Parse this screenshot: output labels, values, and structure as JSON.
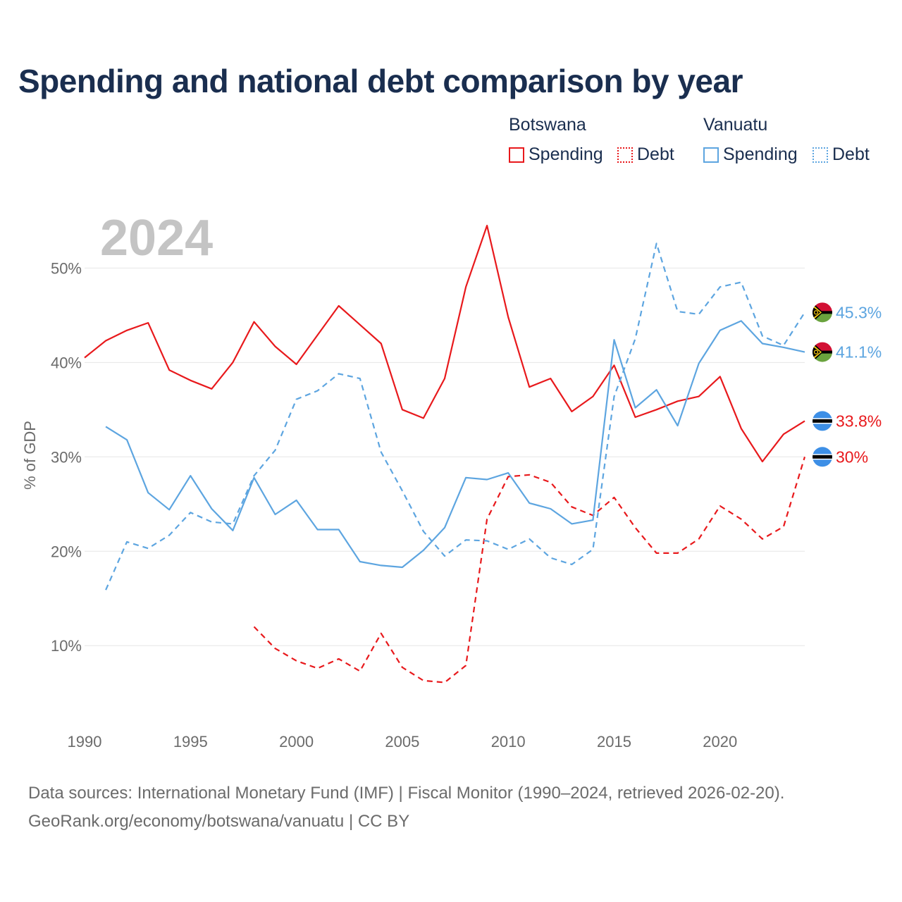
{
  "title": "Spending and national debt comparison by year",
  "year_label": "2024",
  "legend": {
    "botswana": "Botswana",
    "vanuatu": "Vanuatu",
    "spending": "Spending",
    "debt": "Debt"
  },
  "sources": {
    "line1": "Data sources: International Monetary Fund (IMF) | Fiscal Monitor (1990–2024, retrieved 2026-02-20).",
    "line2": "GeoRank.org/economy/botswana/vanuatu | CC BY"
  },
  "colors": {
    "botswana": "#e8191c",
    "vanuatu": "#5da5e0",
    "title": "#1a2e4f",
    "axis_text": "#6b6b6b",
    "grid": "#e6e6e6",
    "year_label": "#c4c4c4"
  },
  "chart_data": {
    "type": "line",
    "title": "Spending and national debt comparison by year",
    "ylabel": "% of GDP",
    "xlabel": "",
    "xlim": [
      1990,
      2024
    ],
    "ylim": [
      3,
      56
    ],
    "x_ticks": [
      1990,
      1995,
      2000,
      2005,
      2010,
      2015,
      2020
    ],
    "y_ticks": [
      10,
      20,
      30,
      40,
      50
    ],
    "y_tick_labels": [
      "10%",
      "20%",
      "30%",
      "40%",
      "50%"
    ],
    "series": [
      {
        "name": "Botswana Spending",
        "country": "botswana",
        "style": "solid",
        "end_label": "33.8%",
        "points": [
          [
            1990,
            40.5
          ],
          [
            1991,
            42.3
          ],
          [
            1992,
            43.4
          ],
          [
            1993,
            44.2
          ],
          [
            1994,
            39.2
          ],
          [
            1995,
            38.1
          ],
          [
            1996,
            37.2
          ],
          [
            1997,
            40.0
          ],
          [
            1998,
            44.3
          ],
          [
            1999,
            41.7
          ],
          [
            2000,
            39.8
          ],
          [
            2001,
            42.9
          ],
          [
            2002,
            46.0
          ],
          [
            2003,
            44.0
          ],
          [
            2004,
            42.0
          ],
          [
            2005,
            35.0
          ],
          [
            2006,
            34.1
          ],
          [
            2007,
            38.3
          ],
          [
            2008,
            48.0
          ],
          [
            2009,
            54.5
          ],
          [
            2010,
            44.8
          ],
          [
            2011,
            37.4
          ],
          [
            2012,
            38.3
          ],
          [
            2013,
            34.8
          ],
          [
            2014,
            36.4
          ],
          [
            2015,
            39.7
          ],
          [
            2016,
            34.2
          ],
          [
            2017,
            35.0
          ],
          [
            2018,
            35.9
          ],
          [
            2019,
            36.4
          ],
          [
            2020,
            38.5
          ],
          [
            2021,
            33.0
          ],
          [
            2022,
            29.5
          ],
          [
            2023,
            32.4
          ],
          [
            2024,
            33.8
          ]
        ]
      },
      {
        "name": "Botswana Debt",
        "country": "botswana",
        "style": "dashed",
        "end_label": "30%",
        "points": [
          [
            1998,
            12.0
          ],
          [
            1999,
            9.7
          ],
          [
            2000,
            8.4
          ],
          [
            2001,
            7.6
          ],
          [
            2002,
            8.6
          ],
          [
            2003,
            7.3
          ],
          [
            2004,
            11.3
          ],
          [
            2005,
            7.7
          ],
          [
            2006,
            6.3
          ],
          [
            2007,
            6.1
          ],
          [
            2008,
            7.9
          ],
          [
            2009,
            23.4
          ],
          [
            2010,
            27.9
          ],
          [
            2011,
            28.1
          ],
          [
            2012,
            27.3
          ],
          [
            2013,
            24.7
          ],
          [
            2014,
            23.8
          ],
          [
            2015,
            25.7
          ],
          [
            2016,
            22.5
          ],
          [
            2017,
            19.8
          ],
          [
            2018,
            19.8
          ],
          [
            2019,
            21.3
          ],
          [
            2020,
            24.8
          ],
          [
            2021,
            23.4
          ],
          [
            2022,
            21.3
          ],
          [
            2023,
            22.6
          ],
          [
            2024,
            30.0
          ]
        ]
      },
      {
        "name": "Vanuatu Spending",
        "country": "vanuatu",
        "style": "solid",
        "end_label": "41.1%",
        "points": [
          [
            1991,
            33.2
          ],
          [
            1992,
            31.8
          ],
          [
            1993,
            26.2
          ],
          [
            1994,
            24.4
          ],
          [
            1995,
            28.0
          ],
          [
            1996,
            24.5
          ],
          [
            1997,
            22.2
          ],
          [
            1998,
            27.8
          ],
          [
            1999,
            23.9
          ],
          [
            2000,
            25.4
          ],
          [
            2001,
            22.3
          ],
          [
            2002,
            22.3
          ],
          [
            2003,
            18.9
          ],
          [
            2004,
            18.5
          ],
          [
            2005,
            18.3
          ],
          [
            2006,
            20.1
          ],
          [
            2007,
            22.5
          ],
          [
            2008,
            27.8
          ],
          [
            2009,
            27.6
          ],
          [
            2010,
            28.3
          ],
          [
            2011,
            25.1
          ],
          [
            2012,
            24.5
          ],
          [
            2013,
            22.9
          ],
          [
            2014,
            23.3
          ],
          [
            2015,
            42.4
          ],
          [
            2016,
            35.2
          ],
          [
            2017,
            37.1
          ],
          [
            2018,
            33.3
          ],
          [
            2019,
            39.9
          ],
          [
            2020,
            43.4
          ],
          [
            2021,
            44.4
          ],
          [
            2022,
            42.0
          ],
          [
            2023,
            41.6
          ],
          [
            2024,
            41.1
          ]
        ]
      },
      {
        "name": "Vanuatu Debt",
        "country": "vanuatu",
        "style": "dashed",
        "end_label": "45.3%",
        "points": [
          [
            1991,
            15.9
          ],
          [
            1992,
            21.0
          ],
          [
            1993,
            20.3
          ],
          [
            1994,
            21.7
          ],
          [
            1995,
            24.1
          ],
          [
            1996,
            23.1
          ],
          [
            1997,
            22.9
          ],
          [
            1998,
            28.0
          ],
          [
            1999,
            30.7
          ],
          [
            2000,
            36.1
          ],
          [
            2001,
            37.0
          ],
          [
            2002,
            38.8
          ],
          [
            2003,
            38.3
          ],
          [
            2004,
            30.5
          ],
          [
            2005,
            26.4
          ],
          [
            2006,
            22.1
          ],
          [
            2007,
            19.5
          ],
          [
            2008,
            21.2
          ],
          [
            2009,
            21.1
          ],
          [
            2010,
            20.2
          ],
          [
            2011,
            21.3
          ],
          [
            2012,
            19.3
          ],
          [
            2013,
            18.6
          ],
          [
            2014,
            20.2
          ],
          [
            2015,
            36.4
          ],
          [
            2016,
            42.5
          ],
          [
            2017,
            52.6
          ],
          [
            2018,
            45.4
          ],
          [
            2019,
            45.1
          ],
          [
            2020,
            48.0
          ],
          [
            2021,
            48.5
          ],
          [
            2022,
            42.8
          ],
          [
            2023,
            41.8
          ],
          [
            2024,
            45.3
          ]
        ]
      }
    ]
  }
}
